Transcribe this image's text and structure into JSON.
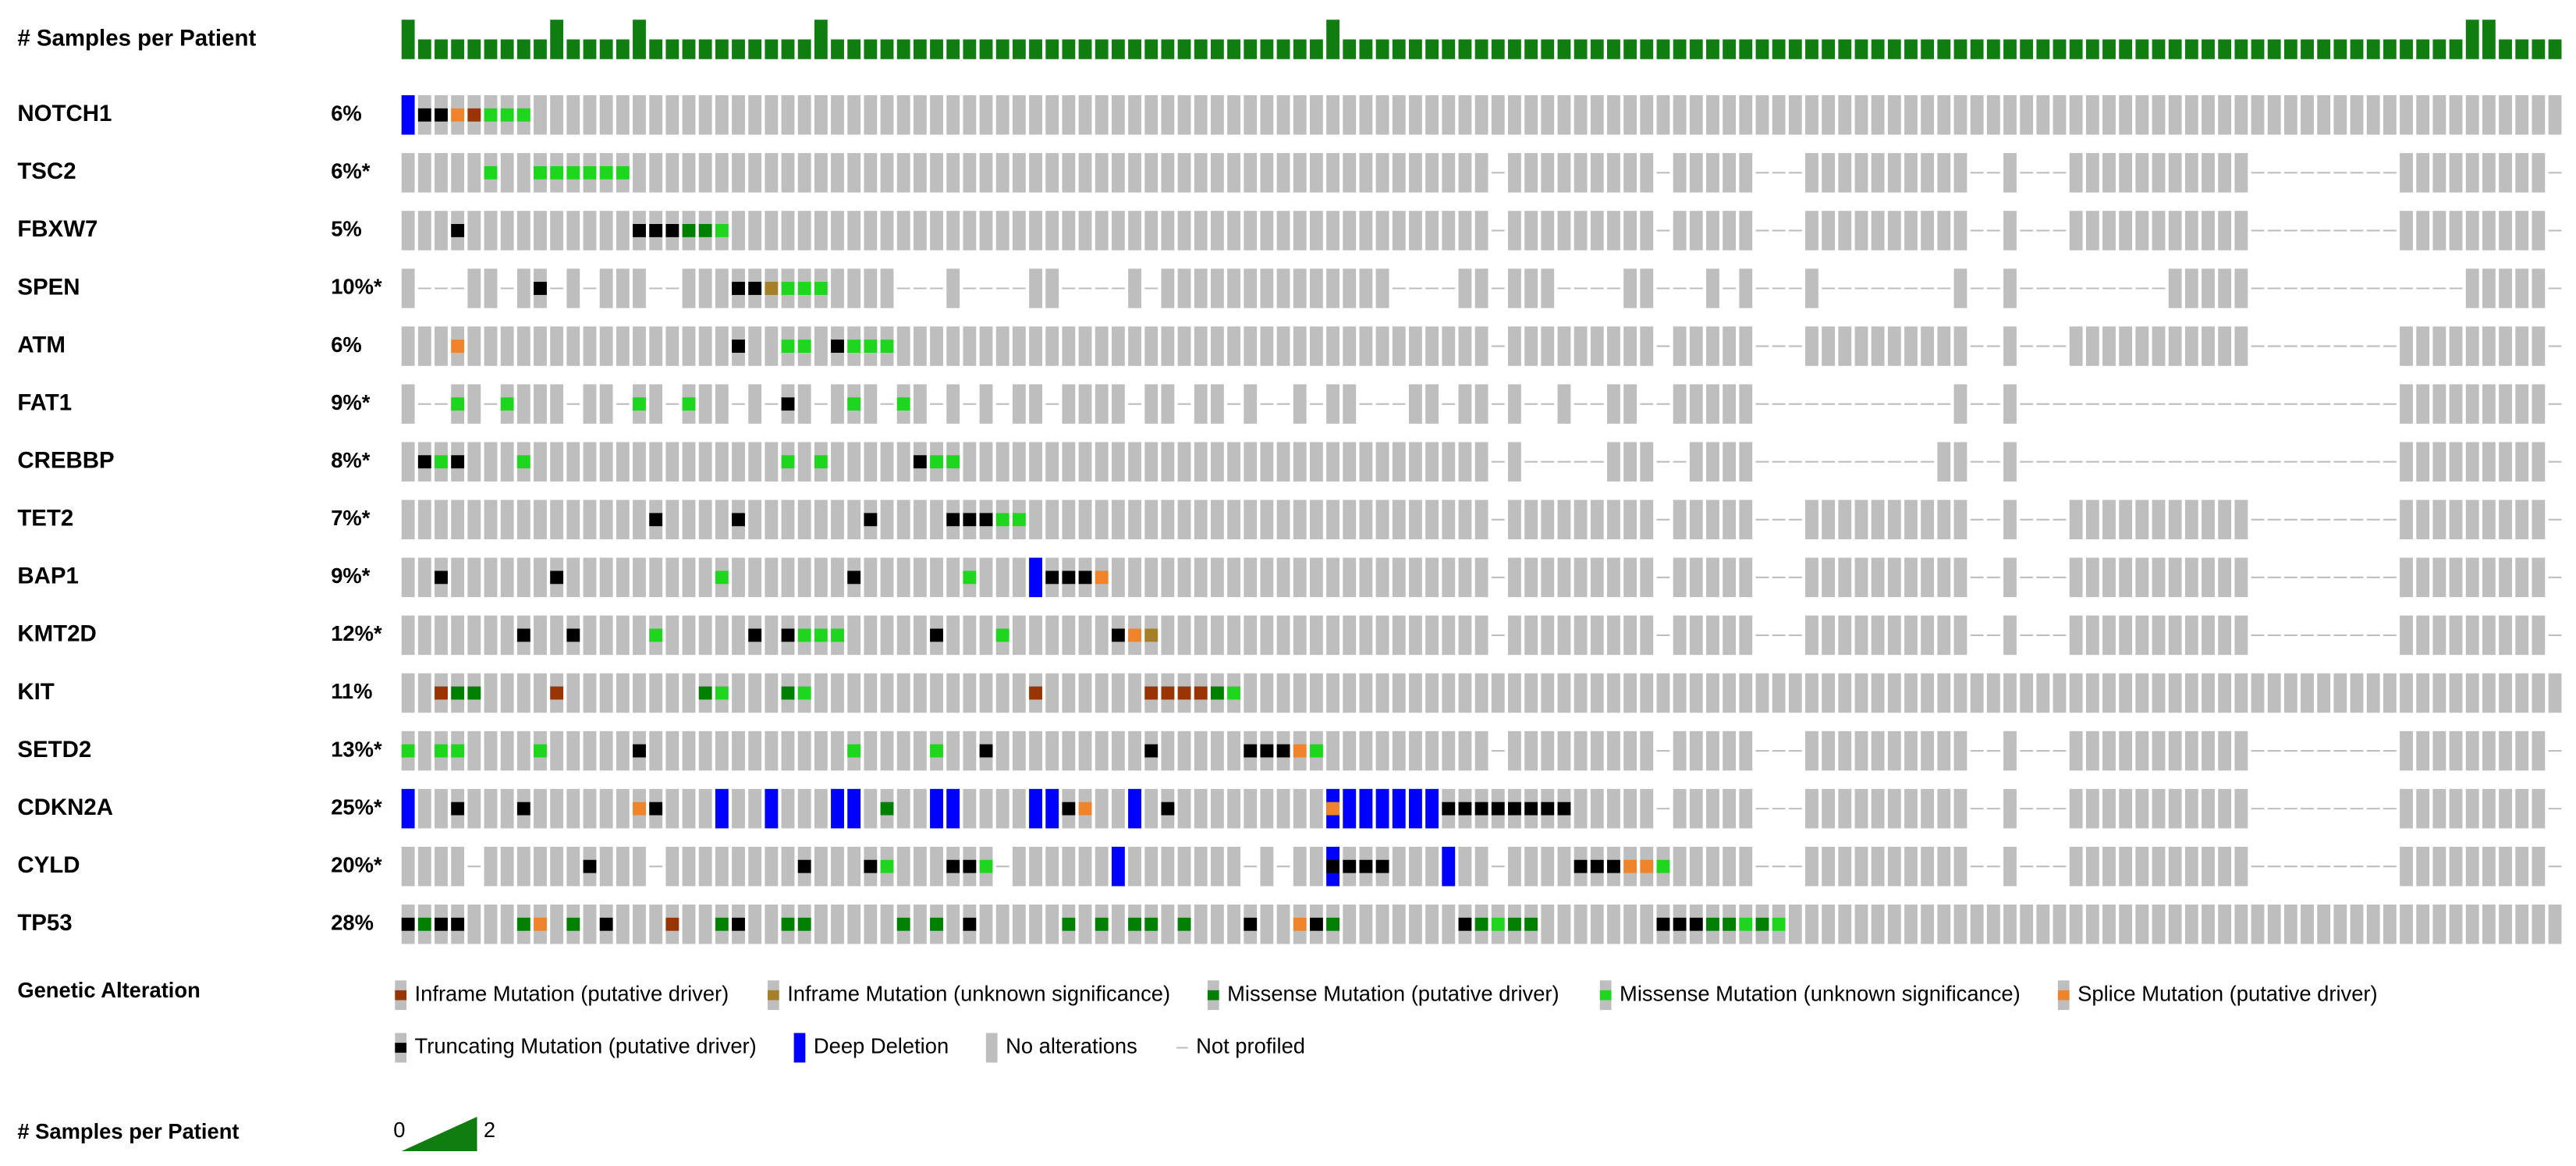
{
  "samples_track": {
    "label": "# Samples per Patient",
    "color": "#0f7d0f",
    "values": [
      2,
      1,
      1,
      1,
      1,
      1,
      1,
      1,
      1,
      2,
      1,
      1,
      1,
      1,
      2,
      1,
      1,
      1,
      1,
      1,
      1,
      1,
      1,
      1,
      1,
      2,
      1,
      1,
      1,
      1,
      1,
      1,
      1,
      1,
      1,
      1,
      1,
      1,
      1,
      1,
      1,
      1,
      1,
      1,
      1,
      1,
      1,
      1,
      1,
      1,
      1,
      1,
      1,
      1,
      1,
      1,
      2,
      1,
      1,
      1,
      1,
      1,
      1,
      1,
      1,
      1,
      1,
      1,
      1,
      1,
      1,
      1,
      1,
      1,
      1,
      1,
      1,
      1,
      1,
      1,
      1,
      1,
      1,
      1,
      1,
      1,
      1,
      1,
      1,
      1,
      1,
      1,
      1,
      1,
      1,
      1,
      1,
      1,
      1,
      1,
      1,
      1,
      1,
      1,
      1,
      1,
      1,
      1,
      1,
      1,
      1,
      1,
      1,
      1,
      1,
      1,
      1,
      1,
      1,
      1,
      1,
      1,
      1,
      1,
      1,
      2,
      2,
      1,
      1,
      1,
      1
    ]
  },
  "tracks": [
    {
      "gene": "NOTCH1",
      "percent": "6%",
      "alterations": [
        [
          0,
          6
        ],
        [
          1,
          5
        ],
        [
          2,
          5
        ],
        [
          3,
          4
        ],
        [
          4,
          0
        ],
        [
          5,
          3
        ],
        [
          6,
          3
        ],
        [
          7,
          3
        ]
      ],
      "not_profiled": []
    },
    {
      "gene": "TSC2",
      "percent": "6%*",
      "alterations": [
        [
          5,
          3
        ],
        [
          8,
          3
        ],
        [
          9,
          3
        ],
        [
          10,
          3
        ],
        [
          11,
          3
        ],
        [
          12,
          3
        ],
        [
          13,
          3
        ]
      ],
      "not_profiled": [
        66,
        76,
        82,
        83,
        84,
        95,
        96,
        98,
        99,
        100,
        112,
        113,
        114,
        115,
        116,
        117,
        118,
        119,
        120,
        130
      ]
    },
    {
      "gene": "FBXW7",
      "percent": "5%",
      "alterations": [
        [
          3,
          5
        ],
        [
          14,
          5
        ],
        [
          15,
          5
        ],
        [
          16,
          5
        ],
        [
          17,
          2
        ],
        [
          18,
          2
        ],
        [
          19,
          3
        ]
      ],
      "not_profiled": [
        66,
        76,
        82,
        83,
        84,
        95,
        96,
        98,
        99,
        100,
        112,
        113,
        114,
        115,
        116,
        117,
        118,
        119,
        120,
        130
      ]
    },
    {
      "gene": "SPEN",
      "percent": "10%*",
      "alterations": [
        [
          8,
          5
        ],
        [
          20,
          5
        ],
        [
          21,
          5
        ],
        [
          22,
          1
        ],
        [
          23,
          3
        ],
        [
          24,
          3
        ],
        [
          25,
          3
        ]
      ],
      "not_profiled": [
        66,
        76,
        82,
        83,
        84,
        95,
        96,
        98,
        99,
        100,
        112,
        113,
        114,
        115,
        116,
        117,
        118,
        119,
        120,
        130,
        1,
        2,
        3,
        6,
        9,
        11,
        15,
        16,
        30,
        31,
        32,
        34,
        35,
        36,
        37,
        40,
        41,
        42,
        43,
        45,
        60,
        61,
        62,
        63,
        70,
        71,
        72,
        73,
        77,
        78,
        80,
        86,
        87,
        88,
        89,
        90,
        91,
        92,
        93,
        101,
        102,
        103,
        104,
        105,
        106,
        121,
        122,
        123,
        124
      ]
    },
    {
      "gene": "ATM",
      "percent": "6%",
      "alterations": [
        [
          3,
          4
        ],
        [
          20,
          5
        ],
        [
          23,
          3
        ],
        [
          24,
          3
        ],
        [
          26,
          5
        ],
        [
          27,
          3
        ],
        [
          28,
          3
        ],
        [
          29,
          3
        ]
      ],
      "not_profiled": [
        66,
        76,
        82,
        83,
        84,
        95,
        96,
        98,
        99,
        100,
        112,
        113,
        114,
        115,
        116,
        117,
        118,
        119,
        120,
        130
      ]
    },
    {
      "gene": "FAT1",
      "percent": "9%*",
      "alterations": [
        [
          3,
          3
        ],
        [
          6,
          3
        ],
        [
          14,
          3
        ],
        [
          17,
          3
        ],
        [
          23,
          5
        ],
        [
          27,
          3
        ],
        [
          30,
          3
        ]
      ],
      "not_profiled": [
        66,
        76,
        82,
        83,
        84,
        95,
        96,
        98,
        99,
        100,
        112,
        113,
        114,
        115,
        116,
        117,
        118,
        119,
        120,
        130,
        1,
        2,
        5,
        10,
        13,
        16,
        20,
        22,
        25,
        29,
        32,
        34,
        36,
        39,
        44,
        47,
        50,
        52,
        53,
        55,
        58,
        59,
        60,
        63,
        68,
        69,
        71,
        72,
        75,
        85,
        86,
        87,
        88,
        89,
        90,
        91,
        92,
        93,
        101,
        102,
        103,
        104,
        105,
        106,
        107,
        108,
        109,
        110,
        111
      ]
    },
    {
      "gene": "CREBBP",
      "percent": "8%*",
      "alterations": [
        [
          1,
          5
        ],
        [
          2,
          3
        ],
        [
          3,
          5
        ],
        [
          7,
          3
        ],
        [
          23,
          3
        ],
        [
          25,
          3
        ],
        [
          31,
          5
        ],
        [
          32,
          3
        ],
        [
          33,
          3
        ]
      ],
      "not_profiled": [
        66,
        76,
        82,
        83,
        84,
        95,
        96,
        98,
        99,
        100,
        112,
        113,
        114,
        115,
        116,
        117,
        118,
        119,
        120,
        130,
        68,
        69,
        70,
        71,
        72,
        77,
        85,
        86,
        87,
        88,
        89,
        90,
        91,
        92,
        101,
        102,
        103,
        104,
        105,
        106,
        107,
        108,
        109,
        110,
        111
      ]
    },
    {
      "gene": "TET2",
      "percent": "7%*",
      "alterations": [
        [
          15,
          5
        ],
        [
          20,
          5
        ],
        [
          28,
          5
        ],
        [
          33,
          5
        ],
        [
          34,
          5
        ],
        [
          35,
          5
        ],
        [
          36,
          3
        ],
        [
          37,
          3
        ]
      ],
      "not_profiled": [
        66,
        76,
        82,
        83,
        84,
        95,
        96,
        98,
        99,
        100,
        112,
        113,
        114,
        115,
        116,
        117,
        118,
        119,
        120,
        130
      ]
    },
    {
      "gene": "BAP1",
      "percent": "9%*",
      "alterations": [
        [
          2,
          5
        ],
        [
          9,
          5
        ],
        [
          19,
          3
        ],
        [
          27,
          5
        ],
        [
          34,
          3
        ],
        [
          38,
          6
        ],
        [
          39,
          5
        ],
        [
          40,
          5
        ],
        [
          41,
          5
        ],
        [
          42,
          4
        ]
      ],
      "not_profiled": [
        66,
        76,
        82,
        83,
        84,
        95,
        96,
        98,
        99,
        100,
        112,
        113,
        114,
        115,
        116,
        117,
        118,
        119,
        120,
        130
      ]
    },
    {
      "gene": "KMT2D",
      "percent": "12%*",
      "alterations": [
        [
          7,
          5
        ],
        [
          10,
          5
        ],
        [
          15,
          3
        ],
        [
          21,
          5
        ],
        [
          23,
          5
        ],
        [
          24,
          3
        ],
        [
          25,
          3
        ],
        [
          26,
          3
        ],
        [
          32,
          5
        ],
        [
          36,
          3
        ],
        [
          43,
          5
        ],
        [
          44,
          4
        ],
        [
          45,
          1
        ]
      ],
      "not_profiled": [
        66,
        76,
        82,
        83,
        84,
        95,
        96,
        98,
        99,
        100,
        112,
        113,
        114,
        115,
        116,
        117,
        118,
        119,
        120,
        130
      ]
    },
    {
      "gene": "KIT",
      "percent": "11%",
      "alterations": [
        [
          2,
          0
        ],
        [
          3,
          2
        ],
        [
          4,
          2
        ],
        [
          9,
          0
        ],
        [
          18,
          2
        ],
        [
          19,
          3
        ],
        [
          23,
          2
        ],
        [
          24,
          3
        ],
        [
          38,
          0
        ],
        [
          45,
          0
        ],
        [
          46,
          0
        ],
        [
          47,
          0
        ],
        [
          48,
          0
        ],
        [
          49,
          2
        ],
        [
          50,
          3
        ]
      ],
      "not_profiled": []
    },
    {
      "gene": "SETD2",
      "percent": "13%*",
      "alterations": [
        [
          0,
          3
        ],
        [
          2,
          3
        ],
        [
          3,
          3
        ],
        [
          8,
          3
        ],
        [
          14,
          5
        ],
        [
          27,
          3
        ],
        [
          32,
          3
        ],
        [
          35,
          5
        ],
        [
          45,
          5
        ],
        [
          51,
          5
        ],
        [
          52,
          5
        ],
        [
          53,
          5
        ],
        [
          54,
          4
        ],
        [
          55,
          3
        ]
      ],
      "not_profiled": [
        66,
        76,
        82,
        83,
        84,
        95,
        96,
        98,
        99,
        100,
        112,
        113,
        114,
        115,
        116,
        117,
        118,
        119,
        120,
        130
      ]
    },
    {
      "gene": "CDKN2A",
      "percent": "25%*",
      "alterations": [
        [
          0,
          6
        ],
        [
          3,
          5
        ],
        [
          7,
          5
        ],
        [
          14,
          4
        ],
        [
          15,
          5
        ],
        [
          19,
          6
        ],
        [
          22,
          6
        ],
        [
          26,
          6
        ],
        [
          27,
          6
        ],
        [
          29,
          2
        ],
        [
          32,
          6
        ],
        [
          33,
          6
        ],
        [
          38,
          6
        ],
        [
          39,
          6
        ],
        [
          40,
          5
        ],
        [
          41,
          4
        ],
        [
          44,
          6
        ],
        [
          46,
          5
        ],
        [
          56,
          6
        ],
        [
          56,
          4
        ],
        [
          57,
          6
        ],
        [
          58,
          6
        ],
        [
          59,
          6
        ],
        [
          60,
          6
        ],
        [
          61,
          6
        ],
        [
          62,
          6
        ],
        [
          63,
          5
        ],
        [
          64,
          5
        ],
        [
          65,
          5
        ],
        [
          66,
          5
        ],
        [
          67,
          5
        ],
        [
          68,
          5
        ],
        [
          69,
          5
        ],
        [
          70,
          5
        ]
      ],
      "not_profiled": [
        76,
        82,
        83,
        84,
        95,
        96,
        98,
        99,
        100,
        112,
        113,
        114,
        115,
        116,
        117,
        118,
        119,
        120,
        130
      ]
    },
    {
      "gene": "CYLD",
      "percent": "20%*",
      "alterations": [
        [
          11,
          5
        ],
        [
          24,
          5
        ],
        [
          28,
          5
        ],
        [
          29,
          3
        ],
        [
          33,
          5
        ],
        [
          34,
          5
        ],
        [
          35,
          3
        ],
        [
          43,
          6
        ],
        [
          56,
          6
        ],
        [
          56,
          5
        ],
        [
          57,
          5
        ],
        [
          58,
          5
        ],
        [
          59,
          5
        ],
        [
          63,
          6
        ],
        [
          71,
          5
        ],
        [
          72,
          5
        ],
        [
          73,
          5
        ],
        [
          74,
          4
        ],
        [
          75,
          4
        ],
        [
          76,
          3
        ]
      ],
      "not_profiled": [
        66,
        82,
        83,
        84,
        95,
        96,
        98,
        99,
        100,
        112,
        113,
        114,
        115,
        116,
        117,
        118,
        119,
        120,
        130,
        4,
        15,
        36,
        51,
        53
      ]
    },
    {
      "gene": "TP53",
      "percent": "28%",
      "alterations": [
        [
          0,
          5
        ],
        [
          1,
          2
        ],
        [
          2,
          5
        ],
        [
          3,
          5
        ],
        [
          7,
          2
        ],
        [
          8,
          4
        ],
        [
          10,
          2
        ],
        [
          12,
          5
        ],
        [
          16,
          0
        ],
        [
          19,
          2
        ],
        [
          20,
          5
        ],
        [
          23,
          2
        ],
        [
          24,
          2
        ],
        [
          30,
          2
        ],
        [
          32,
          2
        ],
        [
          34,
          5
        ],
        [
          40,
          2
        ],
        [
          42,
          2
        ],
        [
          44,
          2
        ],
        [
          45,
          2
        ],
        [
          47,
          2
        ],
        [
          51,
          5
        ],
        [
          54,
          4
        ],
        [
          55,
          5
        ],
        [
          56,
          2
        ],
        [
          64,
          5
        ],
        [
          65,
          2
        ],
        [
          66,
          3
        ],
        [
          67,
          2
        ],
        [
          68,
          2
        ],
        [
          76,
          5
        ],
        [
          77,
          5
        ],
        [
          78,
          5
        ],
        [
          79,
          2
        ],
        [
          80,
          2
        ],
        [
          81,
          3
        ],
        [
          82,
          2
        ],
        [
          83,
          3
        ]
      ],
      "not_profiled": []
    }
  ],
  "legend": {
    "title": "Genetic Alteration",
    "items": [
      {
        "label": "Inframe Mutation (putative driver)",
        "color": "#993404"
      },
      {
        "label": "Inframe Mutation (unknown significance)",
        "color": "#a68028"
      },
      {
        "label": "Missense Mutation (putative driver)",
        "color": "#008000"
      },
      {
        "label": "Missense Mutation (unknown significance)",
        "color": "#1fd61f"
      },
      {
        "label": "Splice Mutation (putative driver)",
        "color": "#f0842a"
      },
      {
        "label": "Truncating Mutation (putative driver)",
        "color": "#000000"
      },
      {
        "label": "Deep Deletion",
        "color": "#0000ff"
      },
      {
        "label": "No alterations",
        "color": "#bebebe"
      },
      {
        "label": "Not profiled",
        "color": "#bebebe"
      }
    ]
  },
  "samples_legend": {
    "label": "# Samples per Patient",
    "min": 0,
    "max": 2
  }
}
